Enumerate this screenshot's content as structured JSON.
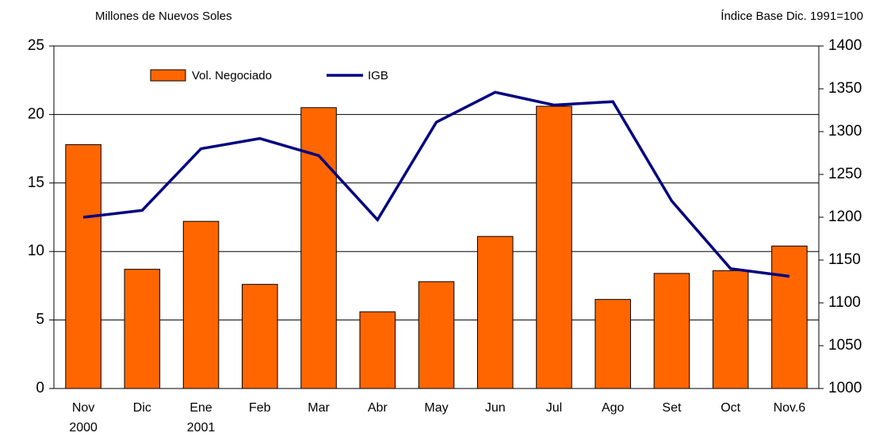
{
  "chart_data": {
    "type": "bar_line",
    "y_label": "Millones de Nuevos Soles",
    "y2_label": "Índice Base Dic. 1991=100",
    "categories": [
      "Nov\n2000",
      "Dic",
      "Ene\n2001",
      "Feb",
      "Mar",
      "Abr",
      "May",
      "Jun",
      "Jul",
      "Ago",
      "Set",
      "Oct",
      "Nov.6"
    ],
    "series": [
      {
        "name": "Vol. Negociado",
        "type": "bar",
        "color": "#ff6600",
        "values": [
          17.8,
          8.7,
          12.2,
          7.6,
          20.5,
          5.6,
          7.8,
          11.1,
          20.6,
          6.5,
          8.4,
          8.6,
          10.4
        ]
      },
      {
        "name": "IGB",
        "type": "line",
        "axis": "y2",
        "color": "#000080",
        "values": [
          1200,
          1208,
          1280,
          1292,
          1272,
          1197,
          1311,
          1346,
          1331,
          1335,
          1219,
          1140,
          1131
        ]
      }
    ],
    "ylim": [
      0,
      25
    ],
    "yticks": [
      0,
      5,
      10,
      15,
      20,
      25
    ],
    "y2lim": [
      1000,
      1400
    ],
    "y2ticks": [
      1000,
      1050,
      1100,
      1150,
      1200,
      1250,
      1300,
      1350,
      1400
    ],
    "grid": true
  }
}
